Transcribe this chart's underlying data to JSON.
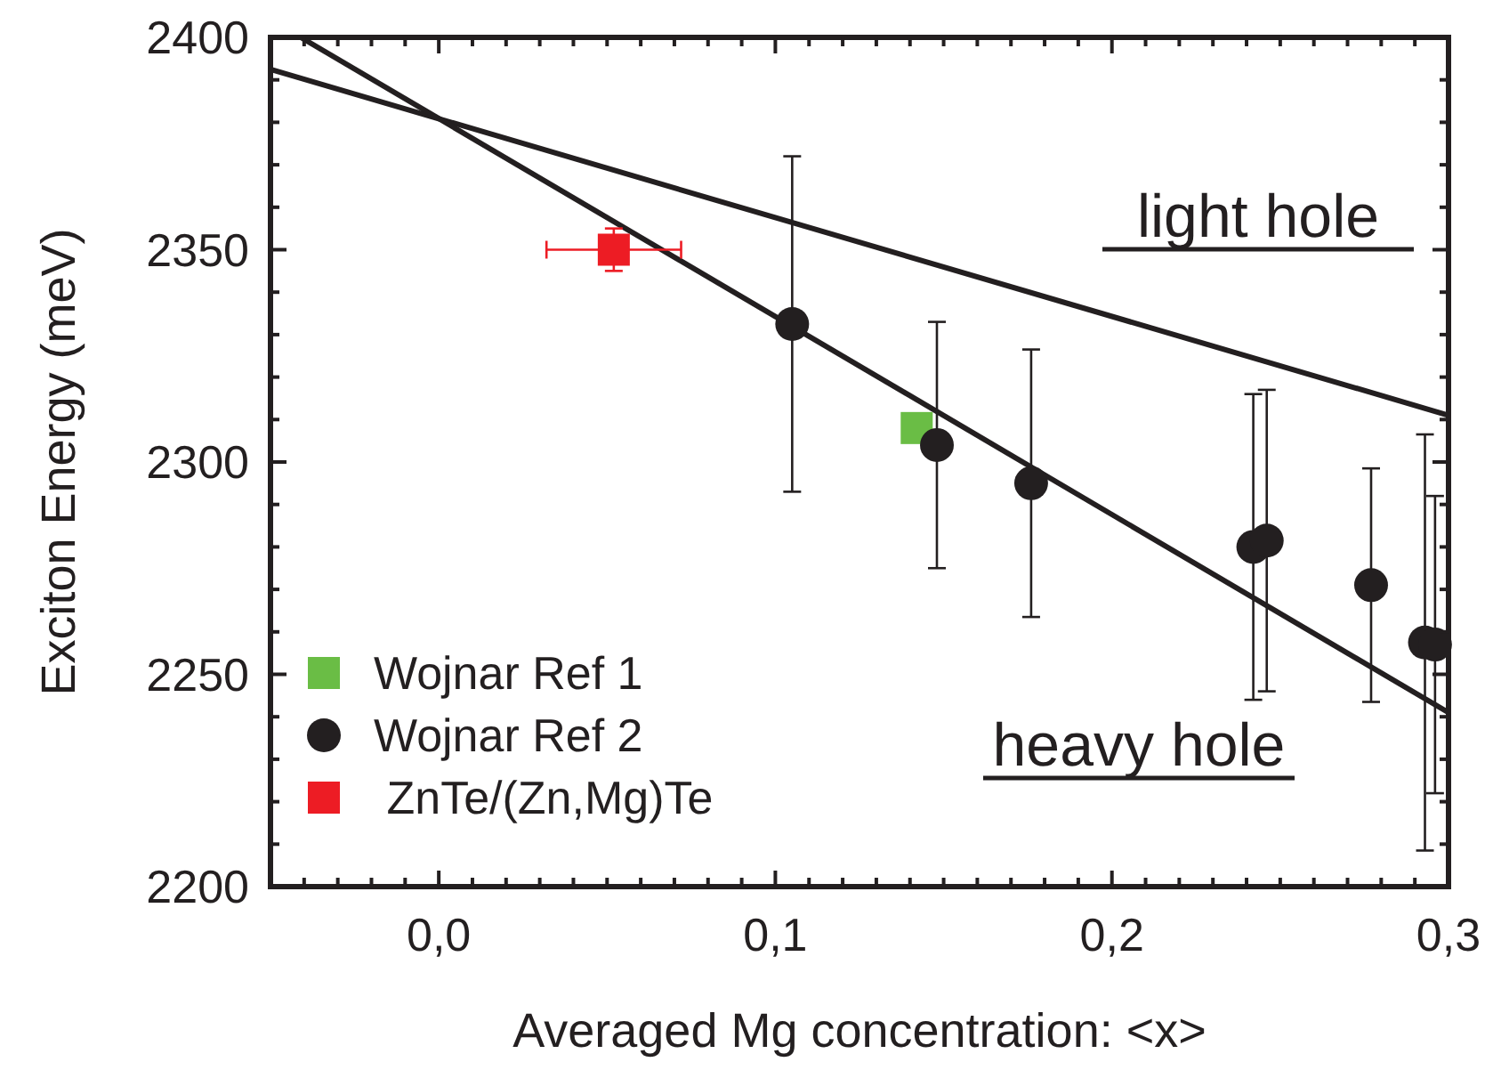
{
  "chart_data": {
    "type": "scatter",
    "xlabel": "Averaged Mg concentration: <x>",
    "ylabel": "Exciton Energy (meV)",
    "xlim": [
      -0.05,
      0.3
    ],
    "ylim": [
      2200,
      2400
    ],
    "xticks": [
      {
        "value": -0.04,
        "label": null
      },
      {
        "value": -0.03,
        "label": null
      },
      {
        "value": -0.02,
        "label": null
      },
      {
        "value": -0.01,
        "label": null
      },
      {
        "value": 0,
        "label": "0,0"
      },
      {
        "value": 0.01,
        "label": null
      },
      {
        "value": 0.02,
        "label": null
      },
      {
        "value": 0.03,
        "label": null
      },
      {
        "value": 0.04,
        "label": null
      },
      {
        "value": 0.05,
        "label": null
      },
      {
        "value": 0.06,
        "label": null
      },
      {
        "value": 0.07,
        "label": null
      },
      {
        "value": 0.08,
        "label": null
      },
      {
        "value": 0.09,
        "label": null
      },
      {
        "value": 0.1,
        "label": "0,1"
      },
      {
        "value": 0.11,
        "label": null
      },
      {
        "value": 0.12,
        "label": null
      },
      {
        "value": 0.13,
        "label": null
      },
      {
        "value": 0.14,
        "label": null
      },
      {
        "value": 0.15,
        "label": null
      },
      {
        "value": 0.16,
        "label": null
      },
      {
        "value": 0.17,
        "label": null
      },
      {
        "value": 0.18,
        "label": null
      },
      {
        "value": 0.19,
        "label": null
      },
      {
        "value": 0.2,
        "label": "0,2"
      },
      {
        "value": 0.21,
        "label": null
      },
      {
        "value": 0.22,
        "label": null
      },
      {
        "value": 0.23,
        "label": null
      },
      {
        "value": 0.24,
        "label": null
      },
      {
        "value": 0.25,
        "label": null
      },
      {
        "value": 0.26,
        "label": null
      },
      {
        "value": 0.27,
        "label": null
      },
      {
        "value": 0.28,
        "label": null
      },
      {
        "value": 0.29,
        "label": null
      },
      {
        "value": 0.3,
        "label": "0,3"
      }
    ],
    "yticks": [
      2200,
      {
        "value": 2210,
        "label": null
      },
      {
        "value": 2220,
        "label": null
      },
      {
        "value": 2230,
        "label": null
      },
      {
        "value": 2240,
        "label": null
      },
      2250,
      {
        "value": 2260,
        "label": null
      },
      {
        "value": 2270,
        "label": null
      },
      {
        "value": 2280,
        "label": null
      },
      {
        "value": 2290,
        "label": null
      },
      2300,
      {
        "value": 2310,
        "label": null
      },
      {
        "value": 2320,
        "label": null
      },
      {
        "value": 2330,
        "label": null
      },
      {
        "value": 2340,
        "label": null
      },
      2350,
      {
        "value": 2360,
        "label": null
      },
      {
        "value": 2370,
        "label": null
      },
      {
        "value": 2380,
        "label": null
      },
      {
        "value": 2390,
        "label": null
      },
      2400
    ],
    "grid": false,
    "legend": "bottom left",
    "series": [
      {
        "type": "line",
        "color": "#231f20",
        "x": [
          -0.05,
          0.3
        ],
        "values": [
          2392.5,
          2311
        ],
        "marker": "none",
        "line_style": "solid"
      },
      {
        "type": "line",
        "color": "#231f20",
        "x": [
          -0.041,
          0.3
        ],
        "values": [
          2400,
          2241
        ],
        "marker": "none",
        "line_style": "solid"
      },
      {
        "name": "Wojnar Ref 1",
        "color": "#6abd45",
        "marker": "square",
        "x": [
          0.142
        ],
        "values": [
          2308
        ]
      },
      {
        "name": "Wojnar Ref 2",
        "color": "#231f20",
        "marker": "circle",
        "x": [
          0.105,
          0.148,
          0.176,
          0.242,
          0.246,
          0.277,
          0.293,
          0.296
        ],
        "values": [
          2332.5,
          2304,
          2295,
          2280,
          2281.5,
          2271,
          2257.5,
          2257
        ],
        "errors": [
          39.5,
          29,
          31.5,
          36,
          35.5,
          27.5,
          49,
          35
        ]
      },
      {
        "name": " ZnTe/(Zn,Mg)Te",
        "color": "#ed1c24",
        "marker": "square",
        "x": [
          0.052
        ],
        "values": [
          2350
        ],
        "errors": [
          5
        ],
        "xerrors": [
          0.02
        ]
      }
    ],
    "annotations": [
      "light hole",
      "heavy hole"
    ]
  }
}
